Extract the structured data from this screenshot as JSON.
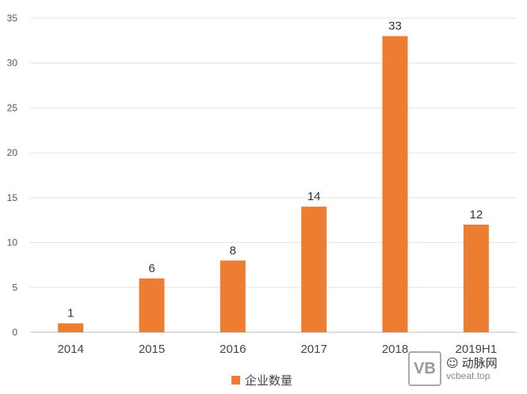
{
  "chart_data": {
    "type": "bar",
    "categories": [
      "2014",
      "2015",
      "2016",
      "2017",
      "2018",
      "2019H1"
    ],
    "series": [
      {
        "name": "企业数量",
        "values": [
          1,
          6,
          8,
          14,
          33,
          12
        ],
        "color": "#ED7D31"
      }
    ],
    "ylim": [
      0,
      35
    ],
    "yticks": [
      0,
      5,
      10,
      15,
      20,
      25,
      30,
      35
    ],
    "grid": true,
    "legend_position": "bottom",
    "data_labels": true
  },
  "legend": {
    "label": "企业数量"
  },
  "watermark": {
    "logo": "VB",
    "title": "动脉网",
    "subtitle": "vcbeat.top"
  }
}
